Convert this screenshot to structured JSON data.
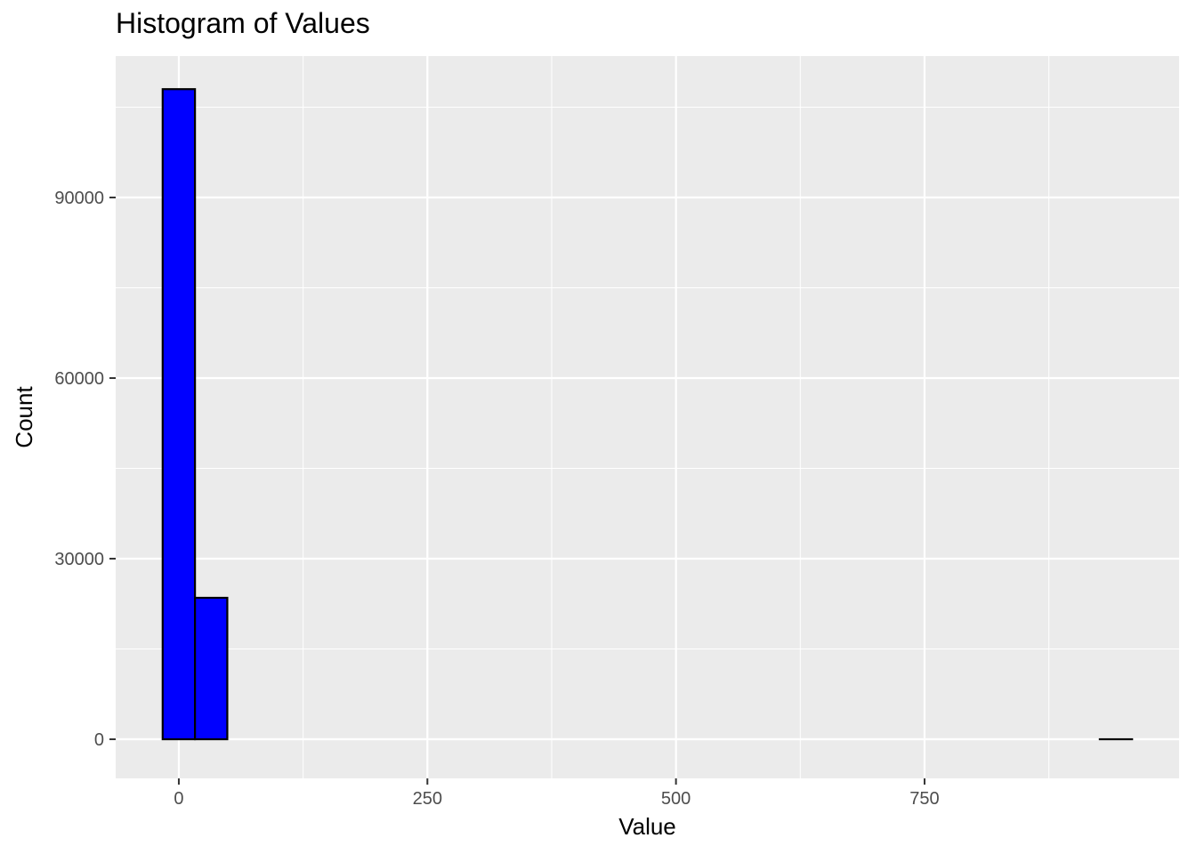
{
  "chart_data": {
    "type": "bar",
    "title": "Histogram of Values",
    "xlabel": "Value",
    "ylabel": "Count",
    "bin_width": 32.5,
    "bins": [
      {
        "x_start": -16.25,
        "x_end": 16.25,
        "count": 108000
      },
      {
        "x_start": 16.25,
        "x_end": 48.75,
        "count": 23500
      },
      {
        "x_start": 48.75,
        "x_end": 81.25,
        "count": 0
      },
      {
        "x_start": 81.25,
        "x_end": 113.75,
        "count": 0
      },
      {
        "x_start": 113.75,
        "x_end": 146.25,
        "count": 0
      },
      {
        "x_start": 146.25,
        "x_end": 178.75,
        "count": 0
      },
      {
        "x_start": 178.75,
        "x_end": 211.25,
        "count": 0
      },
      {
        "x_start": 211.25,
        "x_end": 243.75,
        "count": 0
      },
      {
        "x_start": 243.75,
        "x_end": 276.25,
        "count": 0
      },
      {
        "x_start": 276.25,
        "x_end": 308.75,
        "count": 0
      },
      {
        "x_start": 308.75,
        "x_end": 341.25,
        "count": 0
      },
      {
        "x_start": 341.25,
        "x_end": 373.75,
        "count": 0
      },
      {
        "x_start": 373.75,
        "x_end": 406.25,
        "count": 0
      },
      {
        "x_start": 406.25,
        "x_end": 438.75,
        "count": 0
      },
      {
        "x_start": 438.75,
        "x_end": 471.25,
        "count": 0
      },
      {
        "x_start": 471.25,
        "x_end": 503.75,
        "count": 0
      },
      {
        "x_start": 503.75,
        "x_end": 536.25,
        "count": 0
      },
      {
        "x_start": 536.25,
        "x_end": 568.75,
        "count": 0
      },
      {
        "x_start": 568.75,
        "x_end": 601.25,
        "count": 0
      },
      {
        "x_start": 601.25,
        "x_end": 633.75,
        "count": 0
      },
      {
        "x_start": 633.75,
        "x_end": 666.25,
        "count": 0
      },
      {
        "x_start": 666.25,
        "x_end": 698.75,
        "count": 0
      },
      {
        "x_start": 698.75,
        "x_end": 731.25,
        "count": 0
      },
      {
        "x_start": 731.25,
        "x_end": 763.75,
        "count": 0
      },
      {
        "x_start": 763.75,
        "x_end": 796.25,
        "count": 0
      },
      {
        "x_start": 796.25,
        "x_end": 828.75,
        "count": 0
      },
      {
        "x_start": 828.75,
        "x_end": 861.25,
        "count": 0
      },
      {
        "x_start": 861.25,
        "x_end": 893.75,
        "count": 0
      },
      {
        "x_start": 893.75,
        "x_end": 926.25,
        "count": 0
      },
      {
        "x_start": 926.25,
        "x_end": 958.75,
        "count": 1
      }
    ],
    "xlim": [
      -63.5,
      1006
    ],
    "ylim": [
      -6500,
      113500
    ],
    "x_ticks": [
      0,
      250,
      500,
      750
    ],
    "y_ticks": [
      0,
      30000,
      60000,
      90000
    ],
    "x_tick_labels": [
      "0",
      "250",
      "500",
      "750"
    ],
    "y_tick_labels": [
      "0",
      "30000",
      "60000",
      "90000"
    ],
    "grid": true,
    "fill_color": "#0000ff",
    "outline_color": "#000000",
    "panel_background": "#ebebeb",
    "grid_color": "#ffffff"
  }
}
